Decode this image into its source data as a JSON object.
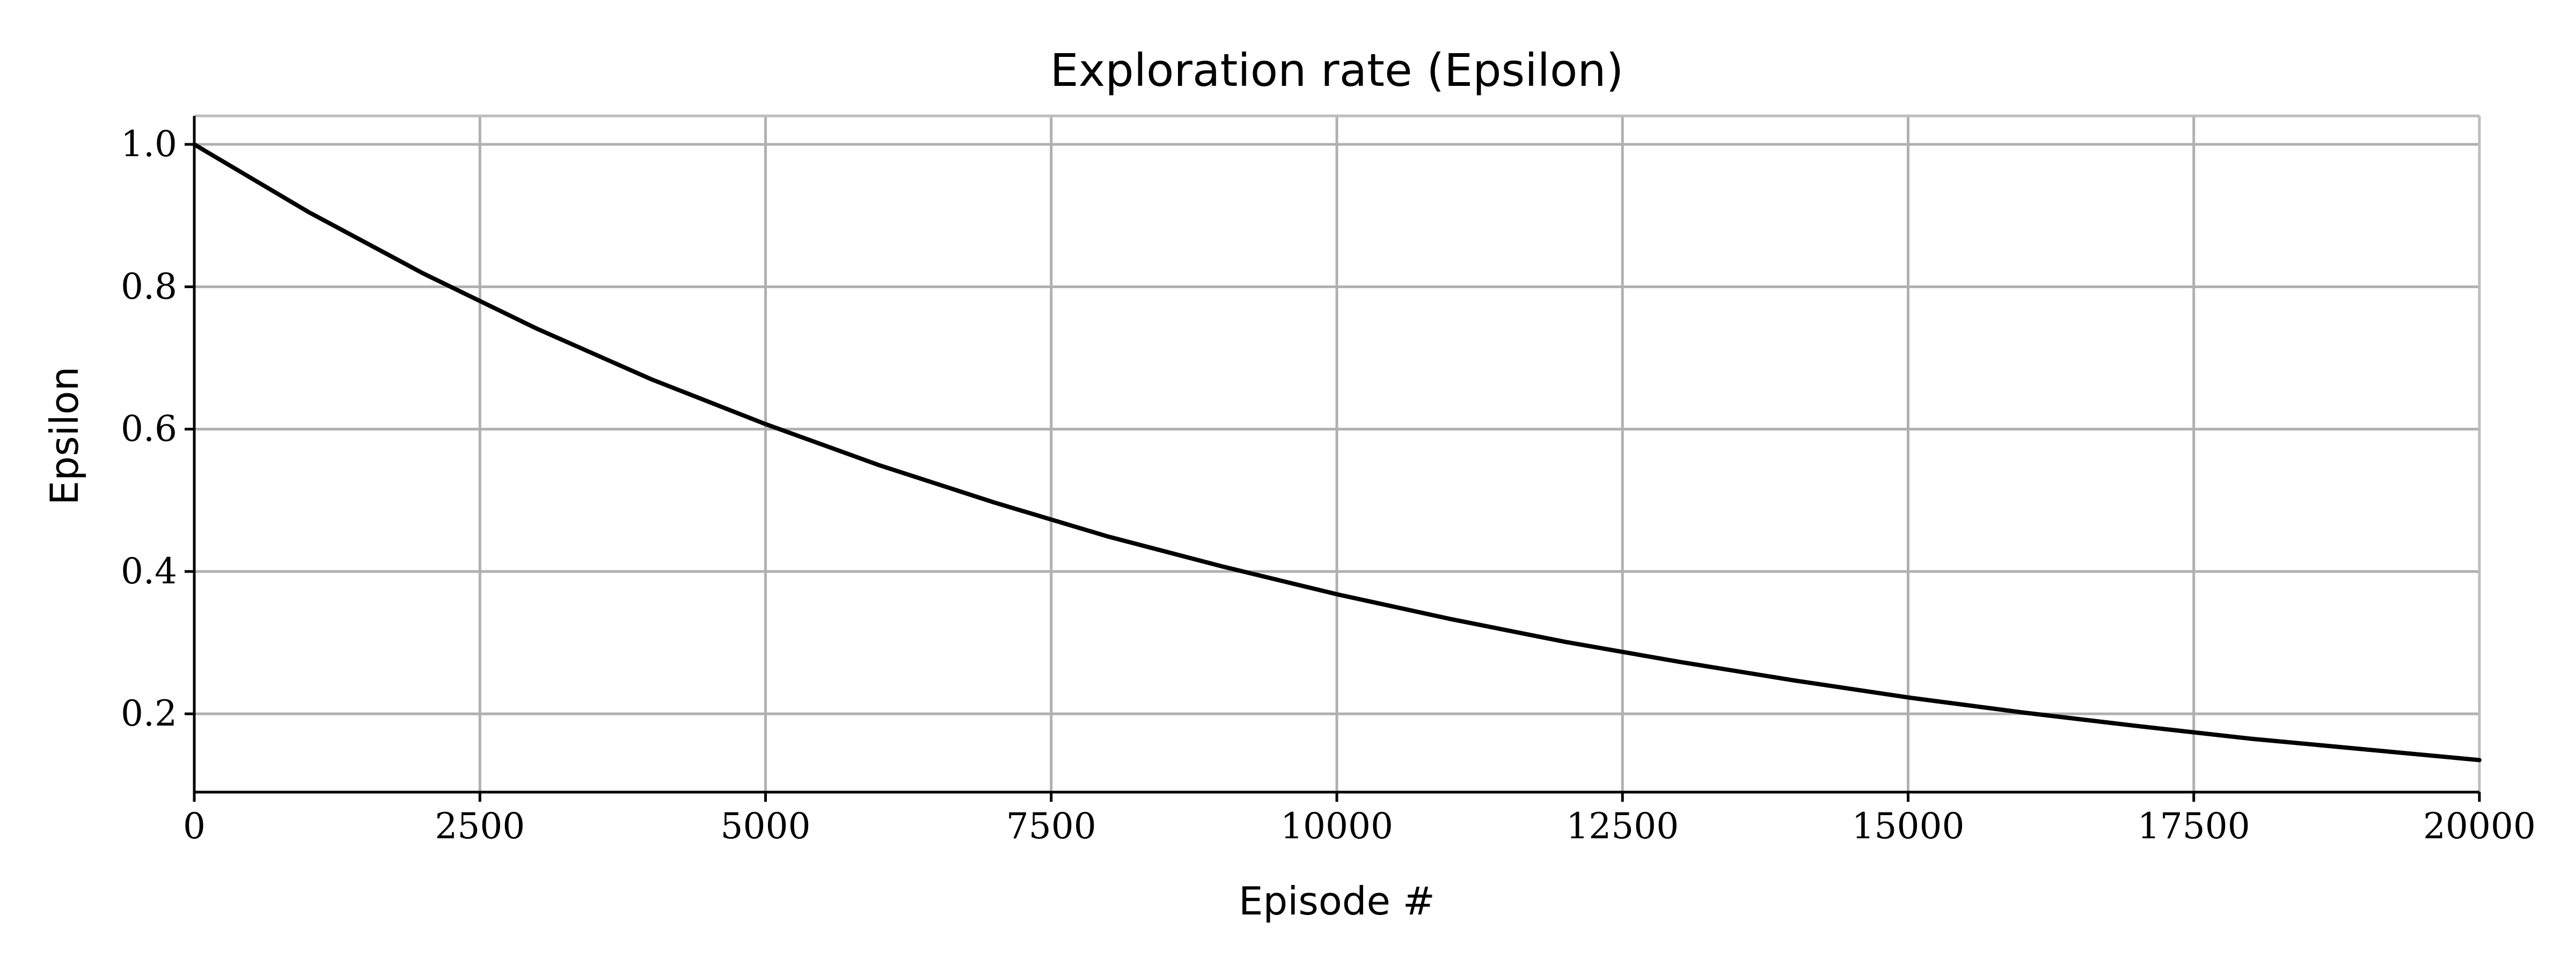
{
  "chart_data": {
    "type": "line",
    "title": "Exploration rate (Epsilon)",
    "xlabel": "Episode #",
    "ylabel": "Epsilon",
    "xlim": [
      0,
      20000
    ],
    "ylim": [
      0.09,
      1.04
    ],
    "xticks": [
      0,
      2500,
      5000,
      7500,
      10000,
      12500,
      15000,
      17500,
      20000
    ],
    "yticks": [
      0.2,
      0.4,
      0.6,
      0.8,
      1.0
    ],
    "ytick_labels": [
      "0.2",
      "0.4",
      "0.6",
      "0.8",
      "1.0"
    ],
    "grid": true,
    "line_color": "#000000",
    "grid_color": "#b0b0b0",
    "series": [
      {
        "x": [
          0,
          1000,
          2000,
          3000,
          4000,
          5000,
          6000,
          7000,
          8000,
          9000,
          10000,
          11000,
          12000,
          13000,
          14000,
          15000,
          16000,
          17000,
          18000,
          19000,
          20000
        ],
        "values": [
          1.0,
          0.905,
          0.819,
          0.741,
          0.67,
          0.607,
          0.549,
          0.497,
          0.449,
          0.407,
          0.368,
          0.333,
          0.301,
          0.273,
          0.247,
          0.223,
          0.202,
          0.183,
          0.165,
          0.15,
          0.135
        ]
      }
    ]
  }
}
